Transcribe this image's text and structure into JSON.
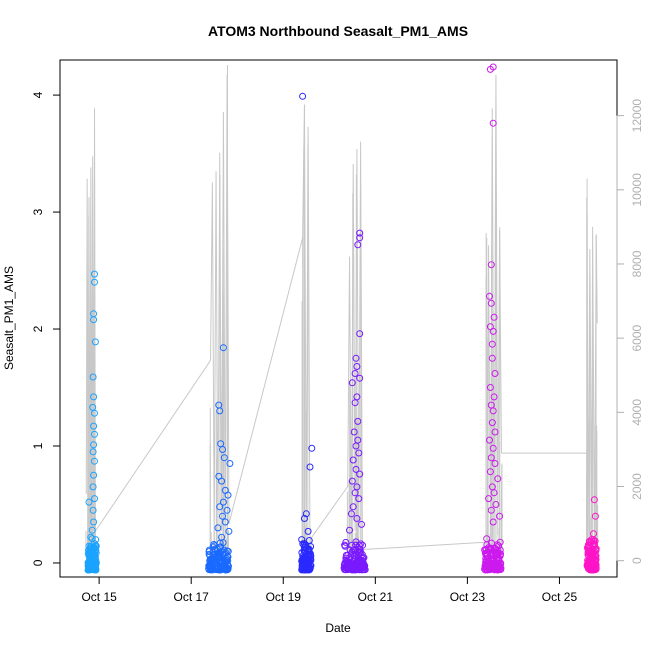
{
  "chart_data": {
    "type": "scatter",
    "title": "ATOM3 Northbound Seasalt_PM1_AMS",
    "xlabel": "Date",
    "ylabel": "Seasalt_PM1_AMS",
    "x_ticks": [
      {
        "label": "Oct 15",
        "day": 15
      },
      {
        "label": "Oct 17",
        "day": 17
      },
      {
        "label": "Oct 19",
        "day": 19
      },
      {
        "label": "Oct 21",
        "day": 21
      },
      {
        "label": "Oct 23",
        "day": 23
      },
      {
        "label": "Oct 25",
        "day": 25
      }
    ],
    "xlim": [
      14.15,
      26.25
    ],
    "ylim": [
      -0.12,
      4.3
    ],
    "y_ticks": [
      0,
      1,
      2,
      3,
      4
    ],
    "y2_ticks": [
      0,
      2000,
      4000,
      6000,
      8000,
      10000,
      12000
    ],
    "y2lim": [
      -440,
      13500
    ],
    "grid": false,
    "secondary_axis_color": "#b0b0b0",
    "line_color": "#c8c8c8",
    "clusters": [
      {
        "color": "#1aa3ff",
        "x_center": 14.85,
        "x_spread": 0.09,
        "outliers": [
          [
            14.9,
            2.47
          ],
          [
            14.9,
            2.4
          ],
          [
            14.88,
            2.13
          ],
          [
            14.88,
            2.08
          ],
          [
            14.92,
            1.89
          ],
          [
            14.87,
            1.59
          ],
          [
            14.88,
            1.42
          ],
          [
            14.86,
            1.33
          ],
          [
            14.9,
            1.28
          ],
          [
            14.88,
            1.17
          ],
          [
            14.9,
            1.1
          ],
          [
            14.88,
            1.01
          ],
          [
            14.87,
            0.95
          ],
          [
            14.9,
            0.87
          ],
          [
            14.88,
            0.75
          ],
          [
            14.87,
            0.65
          ],
          [
            14.9,
            0.55
          ],
          [
            14.78,
            0.52
          ],
          [
            14.87,
            0.45
          ],
          [
            14.88,
            0.35
          ],
          [
            14.85,
            0.28
          ],
          [
            14.82,
            0.22
          ]
        ],
        "altitude": [
          [
            14.72,
            1800
          ],
          [
            14.74,
            10300
          ],
          [
            14.76,
            700
          ],
          [
            14.78,
            9800
          ],
          [
            14.8,
            600
          ],
          [
            14.82,
            10600
          ],
          [
            14.84,
            400
          ],
          [
            14.86,
            10900
          ],
          [
            14.88,
            800
          ],
          [
            14.9,
            12200
          ],
          [
            14.92,
            300
          ]
        ]
      },
      {
        "color": "#1a6aff",
        "x_center": 17.6,
        "x_spread": 0.22,
        "outliers": [
          [
            17.7,
            1.84
          ],
          [
            17.6,
            1.35
          ],
          [
            17.62,
            1.3
          ],
          [
            17.64,
            1.02
          ],
          [
            17.68,
            0.97
          ],
          [
            17.72,
            0.9
          ],
          [
            17.84,
            0.85
          ],
          [
            17.6,
            0.74
          ],
          [
            17.66,
            0.7
          ],
          [
            17.74,
            0.62
          ],
          [
            17.8,
            0.58
          ],
          [
            17.7,
            0.52
          ],
          [
            17.62,
            0.48
          ],
          [
            17.78,
            0.45
          ],
          [
            17.68,
            0.4
          ],
          [
            17.74,
            0.35
          ],
          [
            17.58,
            0.3
          ],
          [
            17.82,
            0.27
          ],
          [
            17.66,
            0.22
          ]
        ],
        "altitude": [
          [
            17.42,
            5400
          ],
          [
            17.46,
            10200
          ],
          [
            17.5,
            700
          ],
          [
            17.54,
            10500
          ],
          [
            17.58,
            500
          ],
          [
            17.62,
            11000
          ],
          [
            17.66,
            800
          ],
          [
            17.7,
            12100
          ],
          [
            17.74,
            600
          ],
          [
            17.78,
            13100
          ],
          [
            17.82,
            1000
          ]
        ]
      },
      {
        "color": "#2a2aff",
        "x_center": 19.5,
        "x_spread": 0.1,
        "outliers": [
          [
            19.42,
            3.99
          ],
          [
            19.62,
            0.98
          ],
          [
            19.58,
            0.82
          ],
          [
            19.5,
            0.42
          ],
          [
            19.46,
            0.38
          ],
          [
            19.54,
            0.27
          ],
          [
            19.4,
            0.2
          ],
          [
            19.48,
            0.15
          ]
        ],
        "altitude": [
          [
            19.42,
            8700
          ],
          [
            19.46,
            12300
          ],
          [
            19.5,
            700
          ],
          [
            19.54,
            11700
          ],
          [
            19.58,
            400
          ],
          [
            19.6,
            600
          ]
        ]
      },
      {
        "color": "#7a1aff",
        "x_center": 20.55,
        "x_spread": 0.23,
        "outliers": [
          [
            20.66,
            2.82
          ],
          [
            20.66,
            2.78
          ],
          [
            20.62,
            2.72
          ],
          [
            20.66,
            1.96
          ],
          [
            20.58,
            1.75
          ],
          [
            20.6,
            1.68
          ],
          [
            20.56,
            1.62
          ],
          [
            20.66,
            1.58
          ],
          [
            20.5,
            1.54
          ],
          [
            20.6,
            1.42
          ],
          [
            20.56,
            1.37
          ],
          [
            20.62,
            1.21
          ],
          [
            20.54,
            1.12
          ],
          [
            20.62,
            1.05
          ],
          [
            20.58,
            1.0
          ],
          [
            20.64,
            0.94
          ],
          [
            20.52,
            0.88
          ],
          [
            20.58,
            0.8
          ],
          [
            20.66,
            0.76
          ],
          [
            20.5,
            0.7
          ],
          [
            20.6,
            0.65
          ],
          [
            20.56,
            0.6
          ],
          [
            20.64,
            0.55
          ],
          [
            20.52,
            0.48
          ],
          [
            20.48,
            0.42
          ],
          [
            20.6,
            0.38
          ],
          [
            20.7,
            0.33
          ],
          [
            20.44,
            0.28
          ]
        ],
        "altitude": [
          [
            20.4,
            2000
          ],
          [
            20.44,
            8200
          ],
          [
            20.48,
            600
          ],
          [
            20.52,
            10700
          ],
          [
            20.56,
            800
          ],
          [
            20.6,
            11100
          ],
          [
            20.64,
            500
          ],
          [
            20.68,
            11300
          ],
          [
            20.72,
            300
          ]
        ]
      },
      {
        "color": "#cc1aee",
        "x_center": 23.55,
        "x_spread": 0.18,
        "outliers": [
          [
            23.5,
            4.22
          ],
          [
            23.56,
            4.24
          ],
          [
            23.56,
            3.76
          ],
          [
            23.52,
            2.55
          ],
          [
            23.48,
            2.28
          ],
          [
            23.52,
            2.22
          ],
          [
            23.58,
            2.1
          ],
          [
            23.5,
            2.02
          ],
          [
            23.56,
            1.98
          ],
          [
            23.54,
            1.87
          ],
          [
            23.54,
            1.75
          ],
          [
            23.6,
            1.62
          ],
          [
            23.5,
            1.5
          ],
          [
            23.58,
            1.42
          ],
          [
            23.52,
            1.35
          ],
          [
            23.56,
            1.3
          ],
          [
            23.54,
            1.2
          ],
          [
            23.6,
            1.12
          ],
          [
            23.48,
            1.05
          ],
          [
            23.56,
            0.98
          ],
          [
            23.52,
            0.9
          ],
          [
            23.6,
            0.85
          ],
          [
            23.5,
            0.78
          ],
          [
            23.66,
            0.72
          ],
          [
            23.54,
            0.65
          ],
          [
            23.58,
            0.6
          ],
          [
            23.46,
            0.55
          ],
          [
            23.62,
            0.5
          ],
          [
            23.52,
            0.45
          ],
          [
            23.7,
            0.4
          ],
          [
            23.56,
            0.35
          ]
        ],
        "altitude": [
          [
            23.42,
            8700
          ],
          [
            23.44,
            500
          ],
          [
            23.46,
            8500
          ],
          [
            23.5,
            600
          ],
          [
            23.54,
            12200
          ],
          [
            23.58,
            400
          ],
          [
            23.62,
            13100
          ],
          [
            23.66,
            700
          ],
          [
            23.7,
            8900
          ],
          [
            23.74,
            2900
          ]
        ]
      },
      {
        "color": "#ff14c8",
        "x_center": 25.7,
        "x_spread": 0.1,
        "outliers": [
          [
            25.76,
            0.54
          ],
          [
            25.78,
            0.4
          ],
          [
            25.74,
            0.25
          ],
          [
            25.7,
            0.2
          ],
          [
            25.76,
            0.15
          ],
          [
            25.62,
            0.12
          ],
          [
            25.72,
            0.1
          ]
        ],
        "altitude": [
          [
            25.6,
            10300
          ],
          [
            25.62,
            300
          ],
          [
            25.66,
            8400
          ],
          [
            25.7,
            500
          ],
          [
            25.72,
            9000
          ],
          [
            25.76,
            600
          ],
          [
            25.8,
            8800
          ],
          [
            25.82,
            6400
          ]
        ]
      }
    ],
    "altitude_connectors": [
      [
        [
          14.92,
          800
        ],
        [
          17.42,
          5400
        ]
      ],
      [
        [
          17.82,
          1000
        ],
        [
          19.42,
          8700
        ]
      ],
      [
        [
          19.6,
          600
        ],
        [
          20.4,
          2000
        ]
      ],
      [
        [
          20.72,
          300
        ],
        [
          23.42,
          500
        ]
      ],
      [
        [
          23.74,
          2900
        ],
        [
          25.6,
          2900
        ]
      ]
    ]
  }
}
